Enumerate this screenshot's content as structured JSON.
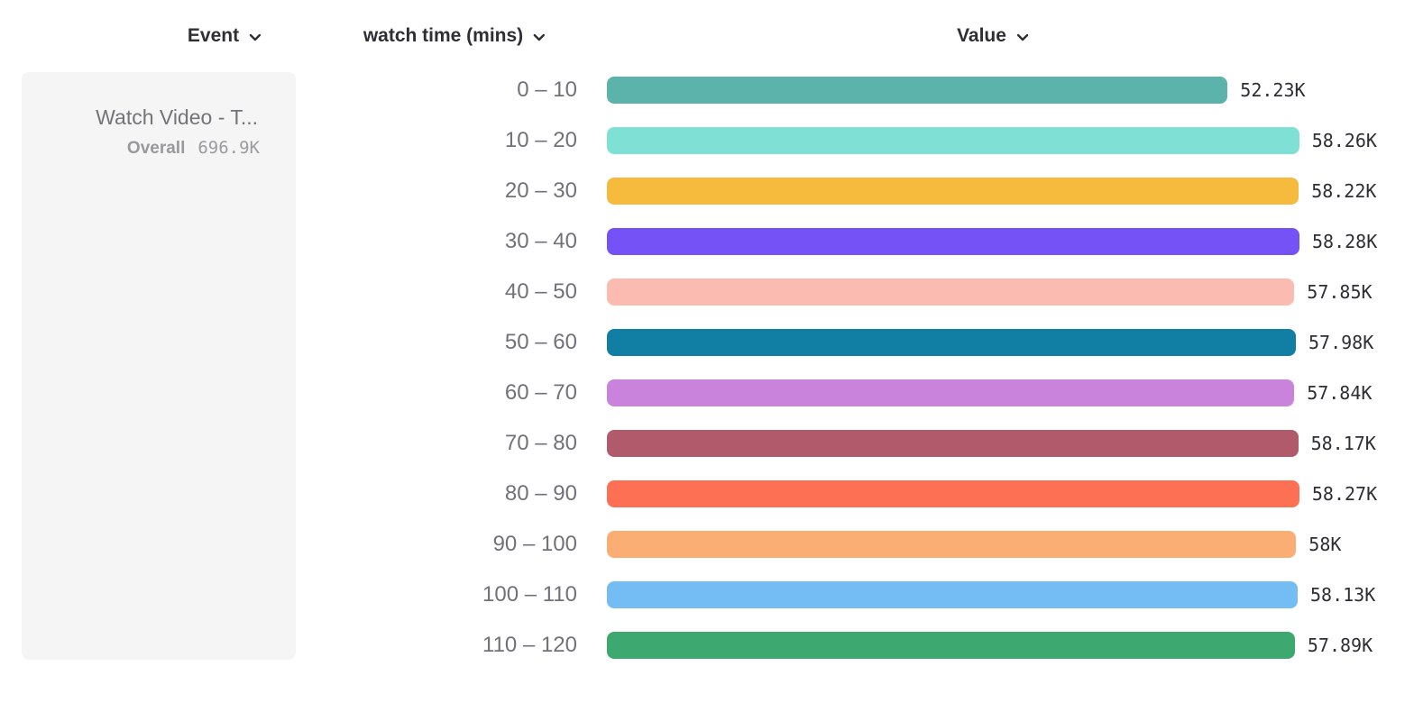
{
  "header": {
    "columns": [
      {
        "id": "event",
        "label": "Event",
        "icon": "chevron-down"
      },
      {
        "id": "watch_time",
        "label": "watch time (mins)",
        "icon": "chevron-down"
      },
      {
        "id": "value",
        "label": "Value",
        "icon": "chevron-down"
      }
    ]
  },
  "event_card": {
    "title": "Watch Video - T...",
    "overall_label": "Overall",
    "overall_value": "696.9K"
  },
  "chart_data": {
    "type": "bar",
    "orientation": "horizontal",
    "title": "",
    "xlabel": "Value",
    "ylabel": "watch time (mins)",
    "xlim": [
      0,
      58280
    ],
    "grid": false,
    "legend": false,
    "categories": [
      "0 – 10",
      "10 – 20",
      "20 – 30",
      "30 – 40",
      "40 – 50",
      "50 – 60",
      "60 – 70",
      "70 – 80",
      "80 – 90",
      "90 – 100",
      "100 – 110",
      "110 – 120"
    ],
    "values": [
      52230,
      58260,
      58220,
      58280,
      57850,
      57980,
      57840,
      58170,
      58270,
      58000,
      58130,
      57890
    ],
    "value_labels": [
      "52.23K",
      "58.26K",
      "58.22K",
      "58.28K",
      "57.85K",
      "57.98K",
      "57.84K",
      "58.17K",
      "58.27K",
      "58K",
      "58.13K",
      "57.89K"
    ],
    "colors": [
      "#5BB3AB",
      "#7FE1D6",
      "#F6BA3D",
      "#7452F5",
      "#FCBBB0",
      "#117EA3",
      "#CA83DC",
      "#B15A6C",
      "#FD7053",
      "#FAAE74",
      "#74BDF4",
      "#3EA871"
    ]
  },
  "layout_colors": {
    "background": "#ffffff",
    "panel_bg": "#f5f5f5",
    "header_text": "#2e2e35",
    "category_text": "#71717a",
    "value_text": "#2e2e33",
    "muted_text": "#9b9ba0"
  }
}
